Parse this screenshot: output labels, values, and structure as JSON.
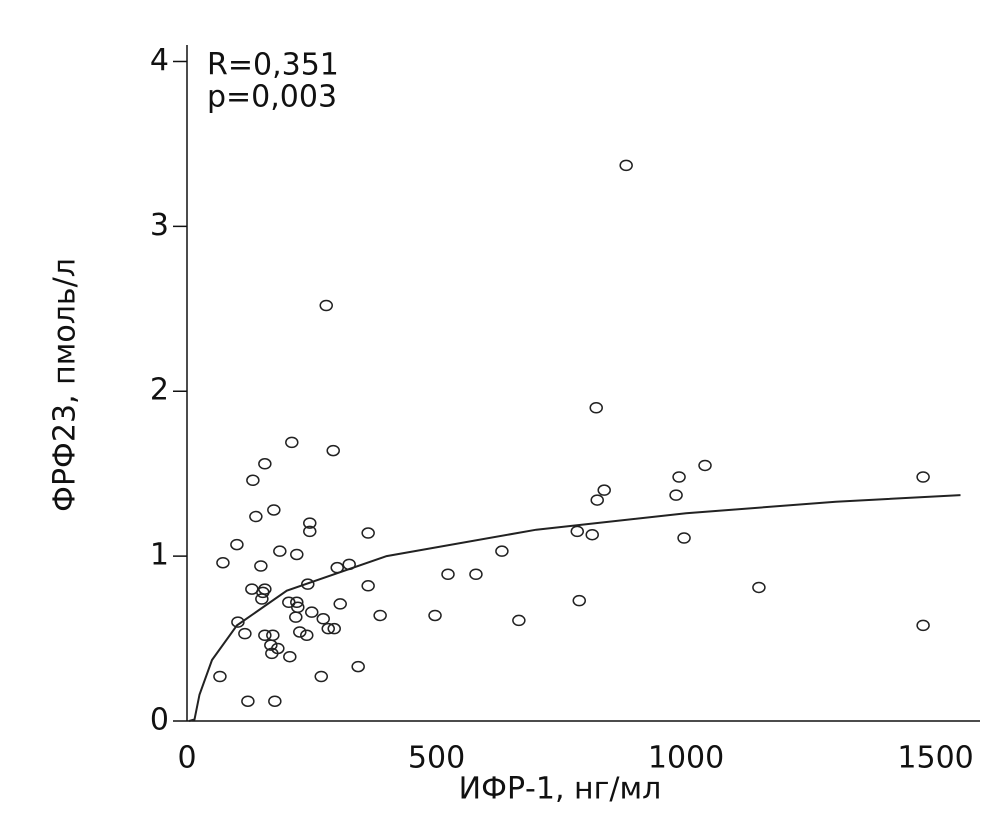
{
  "chart_data": {
    "type": "scatter",
    "x_label": "ИФР-1, нг/мл",
    "y_label": "ФРФ23, пмоль/л",
    "annotations": [
      "R=0,351",
      "p=0,003"
    ],
    "x": [
      66,
      72,
      100,
      102,
      116,
      122,
      130,
      132,
      138,
      148,
      150,
      152,
      156,
      156,
      156,
      168,
      170,
      172,
      174,
      176,
      182,
      186,
      204,
      206,
      210,
      218,
      220,
      220,
      222,
      226,
      240,
      242,
      246,
      246,
      250,
      269,
      273,
      279,
      283,
      293,
      295,
      301,
      307,
      325,
      343,
      363,
      363,
      387,
      497,
      523,
      579,
      631,
      665,
      782,
      786,
      812,
      820,
      822,
      836,
      880,
      980,
      986,
      996,
      1038,
      1146,
      1475,
      1475
    ],
    "values": [
      0.27,
      0.96,
      1.07,
      0.6,
      0.53,
      0.12,
      0.8,
      1.46,
      1.24,
      0.94,
      0.74,
      0.78,
      0.8,
      0.52,
      1.56,
      0.46,
      0.41,
      0.52,
      1.28,
      0.12,
      0.44,
      1.03,
      0.72,
      0.39,
      1.69,
      0.63,
      1.01,
      0.72,
      0.69,
      0.54,
      0.52,
      0.83,
      1.2,
      1.15,
      0.66,
      0.27,
      0.62,
      2.52,
      0.56,
      1.64,
      0.56,
      0.93,
      0.71,
      0.95,
      0.33,
      0.82,
      1.14,
      0.64,
      0.64,
      0.89,
      0.89,
      1.03,
      0.61,
      1.15,
      0.73,
      1.13,
      1.9,
      1.34,
      1.4,
      3.37,
      1.37,
      1.48,
      1.11,
      1.55,
      0.81,
      1.48,
      0.58
    ],
    "color": "#222222",
    "fit": {
      "x": [
        4,
        15,
        25,
        50,
        100,
        200,
        400,
        700,
        1000,
        1300,
        1550
      ],
      "values": [
        0,
        0.01,
        0.16,
        0.37,
        0.58,
        0.79,
        1.0,
        1.16,
        1.26,
        1.33,
        1.37
      ]
    },
    "xlim": [
      0,
      1589
    ],
    "xticks": [
      0,
      500,
      1000,
      1500
    ],
    "ylim": [
      0,
      4.1
    ],
    "yticks": [
      0,
      1,
      2,
      3,
      4
    ]
  }
}
